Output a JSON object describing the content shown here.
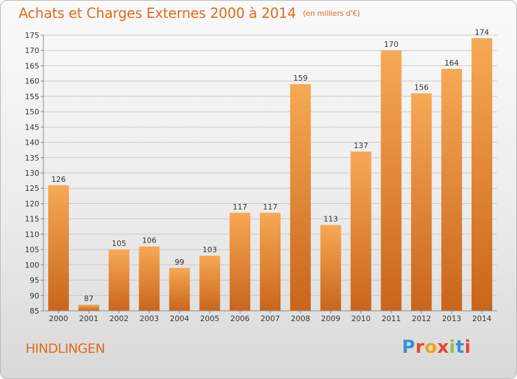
{
  "header": {
    "title": "Achats et Charges Externes 2000 à 2014",
    "unit": "(en milliers d'€)"
  },
  "footer": {
    "commune": "HINDLINGEN",
    "logo": "Proxiti",
    "logo_colors": [
      "#3a8fd8",
      "#e8452c",
      "#f3a21a",
      "#e8452c",
      "#8bc34a",
      "#3a8fd8",
      "#e8452c"
    ]
  },
  "colors": {
    "accent": "#e06a1a",
    "bar_light": "#f7a955",
    "bar_dark": "#c9651b"
  },
  "chart_data": {
    "type": "bar",
    "title": "Achats et Charges Externes 2000 à 2014",
    "subtitle": "(en milliers d'€)",
    "categories": [
      "2000",
      "2001",
      "2002",
      "2003",
      "2004",
      "2005",
      "2006",
      "2007",
      "2008",
      "2009",
      "2010",
      "2011",
      "2012",
      "2013",
      "2014"
    ],
    "values": [
      126,
      87,
      105,
      106,
      99,
      103,
      117,
      117,
      159,
      113,
      137,
      170,
      156,
      164,
      174
    ],
    "ylim": [
      85,
      175
    ],
    "yticks": [
      85,
      90,
      95,
      100,
      105,
      110,
      115,
      120,
      125,
      130,
      135,
      140,
      145,
      150,
      155,
      160,
      165,
      170,
      175
    ],
    "grid": true,
    "data_labels": true
  }
}
